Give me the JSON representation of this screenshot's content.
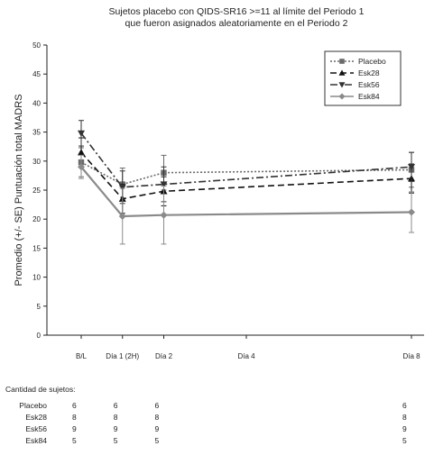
{
  "chart_data": {
    "type": "line",
    "title": [
      "Sujetos placebo con QIDS-SR16 >=11 al límite del Periodo 1",
      "que fueron asignados aleatoriamente en el Periodo 2"
    ],
    "ylabel": "Promedio (+/- SE) Puntuación total MADRS",
    "ylim": [
      0,
      50
    ],
    "yticks": [
      0,
      5,
      10,
      15,
      20,
      25,
      30,
      35,
      40,
      45,
      50
    ],
    "x_positions": [
      0,
      1,
      2,
      4,
      8
    ],
    "x_ticks": [
      {
        "pos": 0,
        "label": "B/L"
      },
      {
        "pos": 1,
        "label": "Día 1 (2H)"
      },
      {
        "pos": 2,
        "label": "Día 2"
      },
      {
        "pos": 4,
        "label": "Día 4"
      },
      {
        "pos": 8,
        "label": "Día 8"
      }
    ],
    "legend_position": "top-right",
    "series": [
      {
        "name": "Placebo",
        "color": "#6a6a6a",
        "dash": "2,2",
        "marker": "square",
        "x": [
          0,
          1,
          2,
          8
        ],
        "y": [
          29.8,
          26.0,
          28.0,
          28.5
        ],
        "err": [
          2.5,
          2.8,
          3.0,
          3.0
        ]
      },
      {
        "name": "Esk28",
        "color": "#111111",
        "dash": "7,4",
        "marker": "triangle-up",
        "x": [
          0,
          1,
          2,
          8
        ],
        "y": [
          31.5,
          23.5,
          24.8,
          27.0
        ],
        "err": [
          2.5,
          2.5,
          2.5,
          2.5
        ]
      },
      {
        "name": "Esk56",
        "color": "#333333",
        "dash": "8,3,2,3",
        "marker": "triangle-down",
        "x": [
          0,
          1,
          2,
          8
        ],
        "y": [
          34.8,
          25.5,
          26.0,
          29.0
        ],
        "err": [
          2.2,
          2.8,
          3.0,
          2.5
        ]
      },
      {
        "name": "Esk84",
        "color": "#8a8a8a",
        "dash": "",
        "marker": "diamond",
        "x": [
          0,
          1,
          2,
          8
        ],
        "y": [
          29.0,
          20.5,
          20.7,
          21.2
        ],
        "err": [
          2.0,
          4.8,
          5.0,
          3.5
        ]
      }
    ]
  },
  "subjects_table": {
    "title": "Cantidad de sujetos:",
    "rows": [
      {
        "label": "Placebo",
        "values": [
          "6",
          "6",
          "6",
          "6"
        ]
      },
      {
        "label": "Esk28",
        "values": [
          "8",
          "8",
          "8",
          "8"
        ]
      },
      {
        "label": "Esk56",
        "values": [
          "9",
          "9",
          "9",
          "9"
        ]
      },
      {
        "label": "Esk84",
        "values": [
          "5",
          "5",
          "5",
          "5"
        ]
      }
    ],
    "positions": [
      0,
      1,
      2,
      8
    ]
  }
}
